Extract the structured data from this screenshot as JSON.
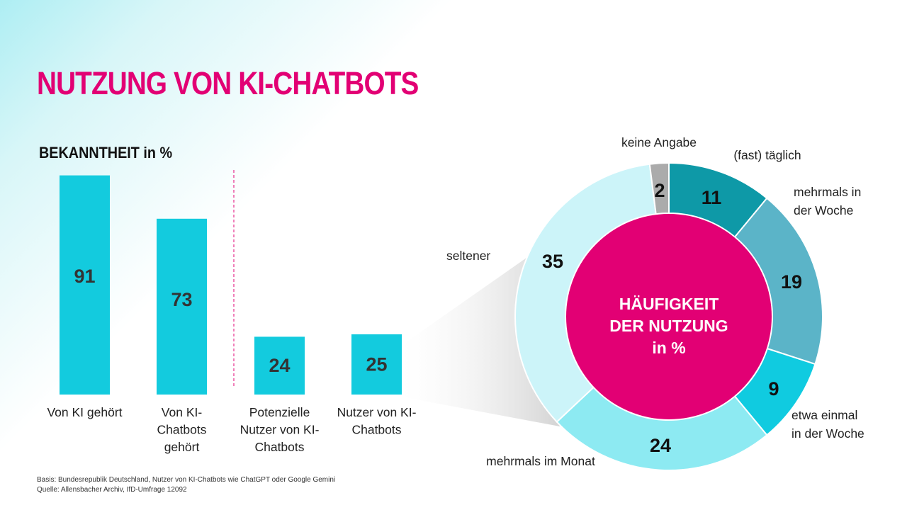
{
  "title": "NUTZUNG VON KI-CHATBOTS",
  "bar_heading": "BEKANNTHEIT in %",
  "footnotes": {
    "basis": "Basis: Bundesrepublik Deutschland, Nutzer von KI-Chatbots wie ChatGPT oder Google Gemini",
    "source": "Quelle: Allensbacher Archiv, IfD-Umfrage 12092"
  },
  "colors": {
    "accent": "#e20074",
    "bar": "#13cbde",
    "value_text": "#333333",
    "separator": "#e20074"
  },
  "chart_data": [
    {
      "type": "bar",
      "title": "BEKANNTHEIT in %",
      "categories": [
        [
          "Von KI gehört"
        ],
        [
          "Von KI-",
          "Chatbots",
          "gehört"
        ],
        [
          "Potenzielle",
          "Nutzer von KI-",
          "Chatbots"
        ],
        [
          "Nutzer von KI-",
          "Chatbots"
        ]
      ],
      "values": [
        91,
        73,
        24,
        25
      ],
      "ylim": [
        0,
        100
      ],
      "grid": false,
      "legend": "none"
    },
    {
      "type": "pie",
      "center_label": [
        "HÄUFIGKEIT",
        "DER NUTZUNG",
        "in %"
      ],
      "slices": [
        {
          "label": [
            "(fast) täglich"
          ],
          "value": 11,
          "color": "#0e99a7"
        },
        {
          "label": [
            "mehrmals in",
            "der Woche"
          ],
          "value": 19,
          "color": "#5bb4c8"
        },
        {
          "label": [
            "etwa einmal",
            "in der Woche"
          ],
          "value": 9,
          "color": "#10cbe0"
        },
        {
          "label": [
            "mehrmals im Monat"
          ],
          "value": 24,
          "color": "#8deaf2"
        },
        {
          "label": [
            "seltener"
          ],
          "value": 35,
          "color": "#ccf4f9"
        },
        {
          "label": [
            "keine Angabe"
          ],
          "value": 2,
          "color": "#ababab"
        }
      ],
      "center_color": "#e20074"
    }
  ]
}
